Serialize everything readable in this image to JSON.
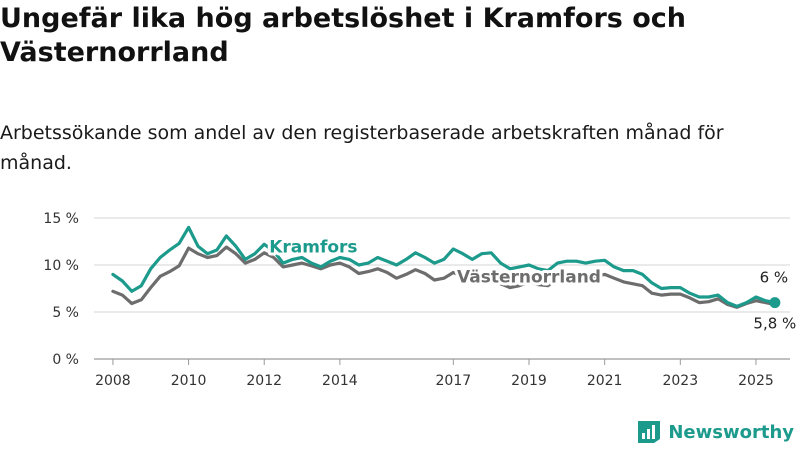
{
  "title": "Ungefär lika hög arbetslöshet i Kramfors och Västernorrland",
  "subtitle": "Arbetssökande som andel av den registerbaserade arbetskraften månad för månad.",
  "brand": "Newsworthy",
  "colors": {
    "kramfors": "#1c9a8c",
    "vasternorrland": "#6d6d6d",
    "brand": "#1c9a8c"
  },
  "chart_data": {
    "type": "line",
    "xlim": [
      2007.5,
      2025.9
    ],
    "ylim": [
      0,
      15
    ],
    "x_ticks": [
      {
        "value": 2008,
        "label": "2008"
      },
      {
        "value": 2010,
        "label": "2010"
      },
      {
        "value": 2012,
        "label": "2012"
      },
      {
        "value": 2014,
        "label": "2014"
      },
      {
        "value": 2017,
        "label": "2017"
      },
      {
        "value": 2019,
        "label": "2019"
      },
      {
        "value": 2021,
        "label": "2021"
      },
      {
        "value": 2023,
        "label": "2023"
      },
      {
        "value": 2025,
        "label": "2025"
      }
    ],
    "y_ticks": [
      {
        "value": 0,
        "label": "0 %"
      },
      {
        "value": 5,
        "label": "5 %"
      },
      {
        "value": 10,
        "label": "10 %"
      },
      {
        "value": 15,
        "label": "15 %"
      }
    ],
    "series": [
      {
        "name": "Kramfors",
        "color": "#1c9a8c",
        "end_label": "6 %",
        "x": [
          2008.0,
          2008.25,
          2008.5,
          2008.75,
          2009.0,
          2009.25,
          2009.5,
          2009.75,
          2010.0,
          2010.25,
          2010.5,
          2010.75,
          2011.0,
          2011.25,
          2011.5,
          2011.75,
          2012.0,
          2012.25,
          2012.5,
          2012.75,
          2013.0,
          2013.25,
          2013.5,
          2013.75,
          2014.0,
          2014.25,
          2014.5,
          2014.75,
          2015.0,
          2015.25,
          2015.5,
          2015.75,
          2016.0,
          2016.25,
          2016.5,
          2016.75,
          2017.0,
          2017.25,
          2017.5,
          2017.75,
          2018.0,
          2018.25,
          2018.5,
          2018.75,
          2019.0,
          2019.25,
          2019.5,
          2019.75,
          2020.0,
          2020.25,
          2020.5,
          2020.75,
          2021.0,
          2021.25,
          2021.5,
          2021.75,
          2022.0,
          2022.25,
          2022.5,
          2022.75,
          2023.0,
          2023.25,
          2023.5,
          2023.75,
          2024.0,
          2024.25,
          2024.5,
          2024.75,
          2025.0,
          2025.25,
          2025.5
        ],
        "values": [
          9.0,
          8.3,
          7.2,
          7.8,
          9.6,
          10.8,
          11.6,
          12.3,
          14.0,
          12.0,
          11.2,
          11.6,
          13.1,
          12.0,
          10.6,
          11.2,
          12.2,
          11.5,
          10.2,
          10.6,
          10.8,
          10.2,
          9.8,
          10.4,
          10.8,
          10.6,
          10.0,
          10.2,
          10.8,
          10.4,
          10.0,
          10.6,
          11.3,
          10.8,
          10.2,
          10.6,
          11.7,
          11.2,
          10.6,
          11.2,
          11.3,
          10.2,
          9.6,
          9.8,
          10.0,
          9.6,
          9.4,
          10.2,
          10.4,
          10.4,
          10.2,
          10.4,
          10.5,
          9.8,
          9.4,
          9.4,
          9.0,
          8.1,
          7.5,
          7.6,
          7.6,
          7.0,
          6.6,
          6.6,
          6.8,
          6.0,
          5.6,
          6.0,
          6.6,
          6.2,
          6.0
        ]
      },
      {
        "name": "Västernorrland",
        "color": "#6d6d6d",
        "end_label": "5,8 %",
        "x": [
          2008.0,
          2008.25,
          2008.5,
          2008.75,
          2009.0,
          2009.25,
          2009.5,
          2009.75,
          2010.0,
          2010.25,
          2010.5,
          2010.75,
          2011.0,
          2011.25,
          2011.5,
          2011.75,
          2012.0,
          2012.25,
          2012.5,
          2012.75,
          2013.0,
          2013.25,
          2013.5,
          2013.75,
          2014.0,
          2014.25,
          2014.5,
          2014.75,
          2015.0,
          2015.25,
          2015.5,
          2015.75,
          2016.0,
          2016.25,
          2016.5,
          2016.75,
          2017.0,
          2017.25,
          2017.5,
          2017.75,
          2018.0,
          2018.25,
          2018.5,
          2018.75,
          2019.0,
          2019.25,
          2019.5,
          2019.75,
          2020.0,
          2020.25,
          2020.5,
          2020.75,
          2021.0,
          2021.25,
          2021.5,
          2021.75,
          2022.0,
          2022.25,
          2022.5,
          2022.75,
          2023.0,
          2023.25,
          2023.5,
          2023.75,
          2024.0,
          2024.25,
          2024.5,
          2024.75,
          2025.0,
          2025.25,
          2025.5
        ],
        "values": [
          7.2,
          6.8,
          5.9,
          6.3,
          7.6,
          8.8,
          9.3,
          9.9,
          11.8,
          11.2,
          10.8,
          11.0,
          11.9,
          11.2,
          10.2,
          10.6,
          11.3,
          10.8,
          9.8,
          10.0,
          10.2,
          9.9,
          9.6,
          10.0,
          10.2,
          9.8,
          9.1,
          9.3,
          9.6,
          9.2,
          8.6,
          9.0,
          9.5,
          9.1,
          8.4,
          8.6,
          9.2,
          8.8,
          8.2,
          8.6,
          8.6,
          8.0,
          7.6,
          7.8,
          8.2,
          7.9,
          7.8,
          8.6,
          9.2,
          9.0,
          8.6,
          8.8,
          9.0,
          8.6,
          8.2,
          8.0,
          7.8,
          7.0,
          6.8,
          6.9,
          6.9,
          6.5,
          6.0,
          6.1,
          6.4,
          5.8,
          5.5,
          5.9,
          6.2,
          6.0,
          5.8
        ]
      }
    ]
  }
}
